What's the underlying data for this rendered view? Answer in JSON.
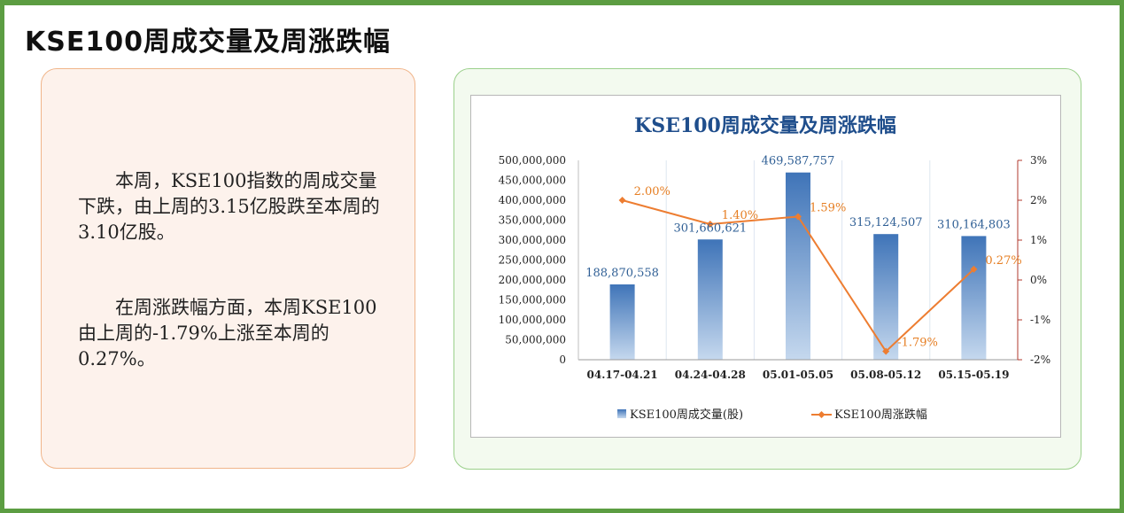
{
  "page": {
    "title": "KSE100周成交量及周涨跌幅"
  },
  "summary": {
    "paragraph1": "本周，KSE100指数的周成交量下跌，由上周的3.15亿股跌至本周的3.10亿股。",
    "paragraph2": "在周涨跌幅方面，本周KSE100由上周的-1.79%上涨至本周的0.27%。"
  },
  "chart_data": {
    "type": "bar",
    "title": "KSE100周成交量及周涨跌幅",
    "categories": [
      "04.17-04.21",
      "04.24-04.28",
      "05.01-05.05",
      "05.08-05.12",
      "05.15-05.19"
    ],
    "series": [
      {
        "name": "KSE100周成交量(股)",
        "type": "bar",
        "axis": "left",
        "values": [
          188870558,
          301660621,
          469587757,
          315124507,
          310164803
        ],
        "labels": [
          "188,870,558",
          "301,660,621",
          "469,587,757",
          "315,124,507",
          "310,164,803"
        ],
        "color": "#5b8cc8"
      },
      {
        "name": "KSE100周涨跌幅",
        "type": "line",
        "axis": "right",
        "values": [
          2.0,
          1.4,
          1.59,
          -1.79,
          0.27
        ],
        "labels": [
          "2.00%",
          "1.40%",
          "1.59%",
          "-1.79%",
          "0.27%"
        ],
        "color": "#ed7d31"
      }
    ],
    "y_left": {
      "min": 0,
      "max": 500000000,
      "step": 50000000,
      "ticks": [
        "0",
        "50,000,000",
        "100,000,000",
        "150,000,000",
        "200,000,000",
        "250,000,000",
        "300,000,000",
        "350,000,000",
        "400,000,000",
        "450,000,000",
        "500,000,000"
      ]
    },
    "y_right": {
      "min": -2,
      "max": 3,
      "step": 1,
      "ticks": [
        "-2%",
        "-1%",
        "0%",
        "1%",
        "2%",
        "3%"
      ],
      "axis_color": "#b03a2e"
    },
    "legend_position": "bottom",
    "grid": "vertical"
  }
}
